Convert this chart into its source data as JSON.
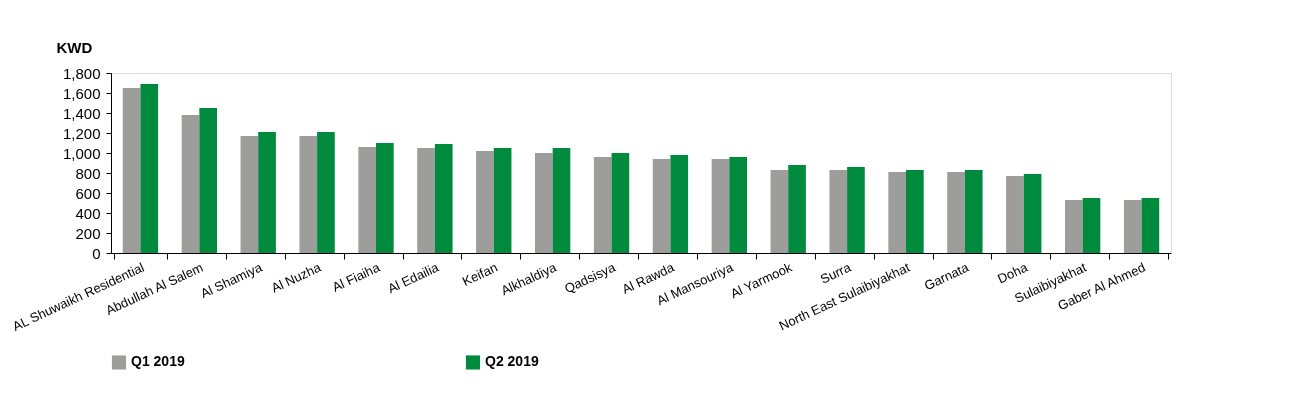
{
  "chart_data": {
    "type": "bar",
    "ylabel": "KWD",
    "categories": [
      "AL Shuwaikh Residential",
      "Abdullah Al Salem",
      "Al Shamiya",
      "Al Nuzha",
      "Al Fiaiha",
      "Al Edailia",
      "Keifan",
      "Alkhaldiya",
      "Qadsisya",
      "Al Rawda",
      "Al Mansouriya",
      "Al Yarmook",
      "Surra",
      "North East Sulaibiyakhat",
      "Garnata",
      "Doha",
      "Sulaibiyakhat",
      "Gaber Al Ahmed"
    ],
    "series": [
      {
        "name": "Q1 2019",
        "color": "#9d9d9c",
        "values": [
          1650,
          1380,
          1170,
          1170,
          1060,
          1050,
          1020,
          1000,
          960,
          940,
          940,
          830,
          830,
          810,
          810,
          770,
          530,
          530
        ]
      },
      {
        "name": "Q2 2019",
        "color": "#008a3e",
        "values": [
          1690,
          1450,
          1210,
          1210,
          1100,
          1090,
          1050,
          1050,
          1000,
          980,
          960,
          880,
          860,
          830,
          830,
          790,
          550,
          550
        ]
      }
    ],
    "ylim": [
      0,
      1800
    ],
    "yticks": [
      0,
      200,
      400,
      600,
      800,
      {
        "value": 1000,
        "label": "1,000"
      },
      {
        "value": 1200,
        "label": "1,200"
      },
      {
        "value": 1400,
        "label": "1,400"
      },
      {
        "value": 1600,
        "label": "1,600"
      },
      {
        "value": 1800,
        "label": "1,800"
      }
    ],
    "grid": false,
    "legend": "bottom"
  }
}
